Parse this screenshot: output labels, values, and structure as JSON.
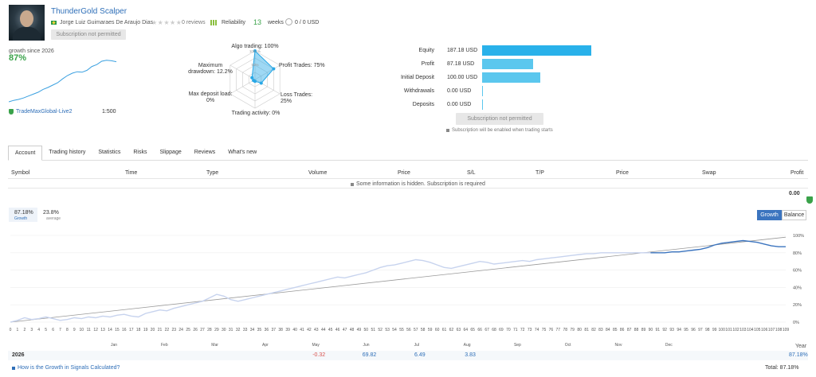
{
  "header": {
    "title": "ThunderGold Scalper",
    "author": "Jorge Luiz Guimaraes De Araujo Dias",
    "stars": "★★★★★",
    "reviews": "0 reviews",
    "reliability_label": "Reliability",
    "weeks_value": "13",
    "weeks_label": "weeks",
    "users": "0 / 0 USD",
    "subscribe_label": "Subscription not permitted"
  },
  "summary": {
    "growth_since": "growth since 2026",
    "growth_value": "87%",
    "growth_series": [
      0,
      3,
      5,
      8,
      12,
      16,
      20,
      26,
      30,
      35,
      40,
      48,
      55,
      60,
      63,
      62,
      66,
      74,
      78,
      85,
      87,
      86,
      84
    ],
    "broker": "TradeMaxGlobal-Live2",
    "leverage": "1:500"
  },
  "radar": {
    "algo": "Algo trading: 100%",
    "profit_trades": "Profit Trades: 75%",
    "loss_trades": "Loss Trades: 25%",
    "activity": "Trading activity: 0%",
    "deposit_load_l1": "Max deposit load:",
    "deposit_load_l2": "0%",
    "drawdown_l1": "Maximum",
    "drawdown_l2": "drawdown: 12.2%",
    "ring_100": "100+%",
    "ring_50": "50%",
    "values": [
      100,
      75,
      25,
      0,
      0,
      12.2
    ]
  },
  "equity": {
    "rows": [
      {
        "label": "Equity",
        "value": "187.18 USD",
        "amount": 187.18
      },
      {
        "label": "Profit",
        "value": "87.18 USD",
        "amount": 87.18
      },
      {
        "label": "Initial Deposit",
        "value": "100.00 USD",
        "amount": 100.0
      },
      {
        "label": "Withdrawals",
        "value": "0.00 USD",
        "amount": 0
      },
      {
        "label": "Deposits",
        "value": "0.00 USD",
        "amount": 0
      }
    ],
    "subscribe_label": "Subscription not permitted",
    "note": "Subscription will be enabled when trading starts"
  },
  "tabs": [
    "Account",
    "Trading history",
    "Statistics",
    "Risks",
    "Slippage",
    "Reviews",
    "What's new"
  ],
  "table": {
    "columns": [
      "Symbol",
      "Time",
      "Type",
      "Volume",
      "Price",
      "S/L",
      "T/P",
      "Price",
      "Swap",
      "Profit"
    ],
    "hidden_note": "Some information is hidden. Subscription is required",
    "profit_total": "0.00"
  },
  "growth_chart": {
    "stat1_value": "87.18%",
    "stat1_label": "Growth",
    "stat2_value": "23.8%",
    "stat2_label": "average",
    "btn_growth": "Growth",
    "btn_balance": "Balance",
    "year": "2026",
    "year_label": "Year",
    "months": [
      "Jan",
      "Feb",
      "Mar",
      "Apr",
      "May",
      "Jun",
      "Jul",
      "Aug",
      "Sep",
      "Oct",
      "Nov",
      "Dec"
    ],
    "month_values": [
      "",
      "",
      "",
      "",
      "-0.32",
      "69.82",
      "6.49",
      "3.83",
      "",
      "",
      "",
      ""
    ],
    "year_total": "87.18%",
    "y_ticks": [
      "100%",
      "80%",
      "60%",
      "40%",
      "20%",
      "0%"
    ],
    "question": "How is the Growth in Signals Calculated?",
    "total": "Total: 87.18%"
  },
  "chart_data": {
    "type": "line",
    "ylim": [
      0,
      100
    ],
    "x_ticks": [
      0,
      109
    ],
    "series": [
      {
        "values": [
          0,
          2,
          5,
          3,
          4,
          6,
          4,
          2,
          3,
          5,
          4,
          6,
          5,
          7,
          6,
          8,
          9,
          7,
          6,
          10,
          12,
          14,
          13,
          16,
          18,
          20,
          22,
          24,
          28,
          32,
          30,
          26,
          24,
          26,
          28,
          30,
          32,
          34,
          36,
          38,
          40,
          42,
          44,
          46,
          48,
          50,
          52,
          51,
          53,
          55,
          57,
          60,
          63,
          65,
          66,
          68,
          70,
          72,
          71,
          69,
          66,
          63,
          62,
          64,
          66,
          68,
          70,
          69,
          67,
          68,
          69,
          70,
          71,
          70,
          72,
          73,
          74,
          75,
          76,
          77,
          78,
          79,
          79,
          80,
          80,
          80,
          80,
          80,
          80,
          80,
          80,
          80,
          80,
          81,
          81,
          82,
          83,
          84,
          86,
          89,
          91,
          92,
          93,
          94,
          93,
          92,
          90,
          88,
          87,
          87
        ]
      }
    ]
  },
  "colors": {
    "accent": "#3b74bf",
    "green": "#3aa24a",
    "bar": "#5bc7ee",
    "line_past": "#c7d3ee",
    "line_recent": "#3b74bf"
  }
}
